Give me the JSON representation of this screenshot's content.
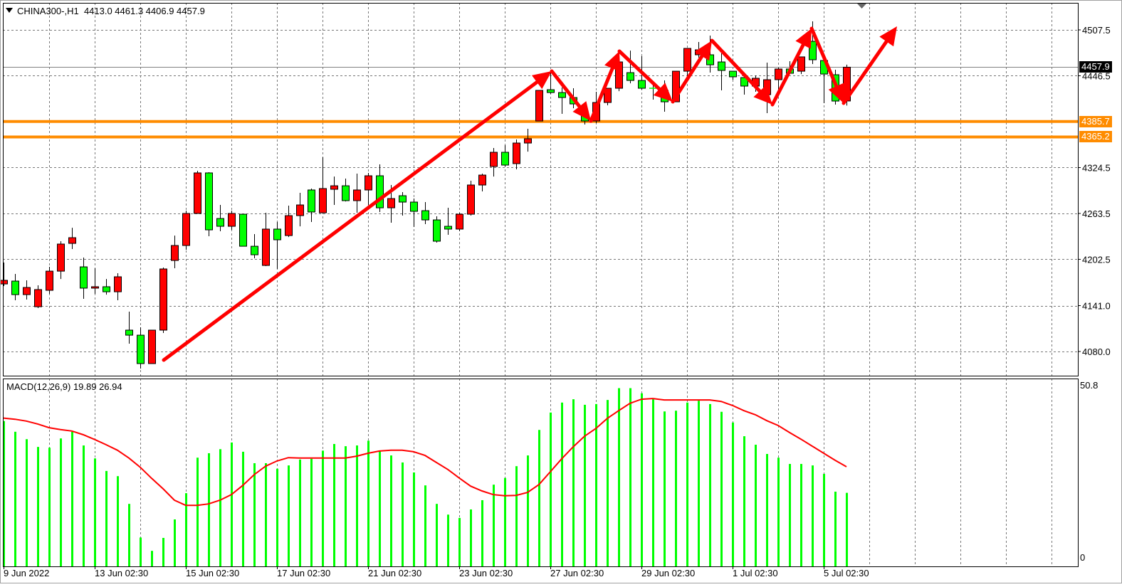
{
  "header": {
    "symbol": "CHINA300-,H1",
    "ohlc_text": "4413.0 4461.3 4406.9 4457.9"
  },
  "macd_header": {
    "label": "MACD(12,26,9)",
    "values_text": "19.89 26.94"
  },
  "colors": {
    "bull_candle": "#ff0000",
    "bear_candle": "#00ff00",
    "level_line": "#ff8c00",
    "annotation_arrow": "#ff0000",
    "macd_histogram": "#00ff00",
    "macd_signal": "#ff0000",
    "bid_tag_bg": "#000000"
  },
  "price_axis": {
    "ticks": [
      "4507.5",
      "4446.5",
      "4324.5",
      "4263.5",
      "4202.5",
      "4141.0",
      "4080.0"
    ],
    "current_price": "4457.9",
    "levels": [
      "4385.7",
      "4365.2"
    ]
  },
  "macd_axis": {
    "ticks": [
      "50.8",
      "0"
    ]
  },
  "time_axis": {
    "labels": [
      "9 Jun 2022",
      "13 Jun 02:30",
      "15 Jun 02:30",
      "17 Jun 02:30",
      "21 Jun 02:30",
      "23 Jun 02:30",
      "27 Jun 02:30",
      "29 Jun 02:30",
      "1 Jul 02:30",
      "5 Jul 02:30"
    ]
  },
  "chart_data": [
    {
      "type": "candlestick",
      "title": "CHINA300-,H1",
      "ylim": [
        4041,
        4551
      ],
      "grid": true,
      "ohlc": [
        [
          4169.8,
          4198.2,
          4167.0,
          4174.6
        ],
        [
          4173.6,
          4183.1,
          4148.1,
          4155.6
        ],
        [
          4155.6,
          4174.6,
          4149.0,
          4165.1
        ],
        [
          4139.5,
          4167.9,
          4137.7,
          4162.3
        ],
        [
          4161.3,
          4192.5,
          4156.6,
          4186.8
        ],
        [
          4186.8,
          4226.6,
          4176.4,
          4222.8
        ],
        [
          4223.7,
          4244.5,
          4216.2,
          4231.3
        ],
        [
          4192.5,
          4204.8,
          4150.0,
          4164.2
        ],
        [
          4164.2,
          4190.6,
          4156.6,
          4166.1
        ],
        [
          4166.1,
          4176.4,
          4155.6,
          4159.4
        ],
        [
          4159.4,
          4184.0,
          4148.1,
          4179.3
        ],
        [
          4108.4,
          4133.0,
          4090.4,
          4101.7
        ],
        [
          4101.7,
          4112.1,
          4057.3,
          4063.9
        ],
        [
          4063.9,
          4108.4,
          4063.9,
          4108.4
        ],
        [
          4108.4,
          4191.6,
          4104.6,
          4189.7
        ],
        [
          4201.0,
          4234.1,
          4190.6,
          4220.9
        ],
        [
          4220.9,
          4267.2,
          4215.2,
          4263.5
        ],
        [
          4263.5,
          4320.2,
          4263.5,
          4317.4
        ],
        [
          4317.4,
          4318.3,
          4233.2,
          4241.7
        ],
        [
          4256.8,
          4274.8,
          4239.8,
          4246.4
        ],
        [
          4246.4,
          4267.2,
          4241.7,
          4263.5
        ],
        [
          4262.5,
          4262.5,
          4219.9,
          4219.9
        ],
        [
          4219.9,
          4236.0,
          4203.9,
          4208.6
        ],
        [
          4194.4,
          4264.4,
          4193.5,
          4242.7
        ],
        [
          4242.7,
          4252.1,
          4189.7,
          4228.5
        ],
        [
          4234.1,
          4273.9,
          4232.2,
          4260.6
        ],
        [
          4260.6,
          4290.9,
          4246.4,
          4274.8
        ],
        [
          4294.7,
          4296.6,
          4252.1,
          4265.4
        ],
        [
          4264.4,
          4338.2,
          4264.4,
          4296.6
        ],
        [
          4295.6,
          4312.6,
          4274.8,
          4300.3
        ],
        [
          4300.3,
          4309.8,
          4279.5,
          4280.5
        ],
        [
          4280.5,
          4316.4,
          4264.4,
          4294.7
        ],
        [
          4294.7,
          4317.4,
          4274.8,
          4313.6
        ],
        [
          4313.6,
          4328.7,
          4265.4,
          4271.0
        ],
        [
          4271.0,
          4301.3,
          4251.2,
          4283.3
        ],
        [
          4287.1,
          4291.8,
          4260.6,
          4278.6
        ],
        [
          4278.6,
          4283.3,
          4245.5,
          4266.3
        ],
        [
          4267.2,
          4278.6,
          4249.3,
          4254.9
        ],
        [
          4254.9,
          4259.7,
          4224.7,
          4226.6
        ],
        [
          4246.4,
          4271.0,
          4235.1,
          4242.7
        ],
        [
          4242.7,
          4264.4,
          4239.8,
          4262.5
        ],
        [
          4262.5,
          4307.0,
          4260.6,
          4301.3
        ],
        [
          4301.3,
          4316.4,
          4292.8,
          4314.5
        ],
        [
          4325.9,
          4350.5,
          4312.6,
          4344.8
        ],
        [
          4344.8,
          4354.3,
          4325.9,
          4327.8
        ],
        [
          4329.7,
          4361.8,
          4322.1,
          4357.1
        ],
        [
          4357.1,
          4376.0,
          4345.7,
          4362.8
        ],
        [
          4386.4,
          4427.1,
          4386.4,
          4427.1
        ],
        [
          4428.0,
          4452.6,
          4422.4,
          4424.2
        ],
        [
          4424.2,
          4430.9,
          4395.9,
          4417.6
        ],
        [
          4417.6,
          4429.9,
          4403.4,
          4409.1
        ],
        [
          4395.9,
          4403.4,
          4381.7,
          4386.4
        ],
        [
          4386.4,
          4425.2,
          4383.6,
          4411.0
        ],
        [
          4411.0,
          4429.9,
          4407.2,
          4429.9
        ],
        [
          4429.9,
          4479.1,
          4426.1,
          4464.9
        ],
        [
          4450.7,
          4480.0,
          4436.5,
          4440.3
        ],
        [
          4440.3,
          4472.5,
          4428.0,
          4429.9
        ],
        [
          4429.9,
          4437.5,
          4414.8,
          4429.9
        ],
        [
          4427.1,
          4440.3,
          4398.7,
          4411.9
        ],
        [
          4411.9,
          4452.6,
          4411.9,
          4452.6
        ],
        [
          4452.6,
          4482.9,
          4440.3,
          4482.9
        ],
        [
          4474.4,
          4491.4,
          4470.6,
          4481.0
        ],
        [
          4474.4,
          4499.9,
          4450.7,
          4461.1
        ],
        [
          4464.9,
          4476.3,
          4427.1,
          4453.6
        ],
        [
          4452.6,
          4452.6,
          4441.3,
          4445.1
        ],
        [
          4444.1,
          4444.1,
          4421.4,
          4432.8
        ],
        [
          4432.8,
          4446.9,
          4425.2,
          4443.2
        ],
        [
          4421.4,
          4464.0,
          4396.8,
          4441.3
        ],
        [
          4441.3,
          4457.4,
          4425.2,
          4455.5
        ],
        [
          4455.5,
          4465.9,
          4449.8,
          4449.8
        ],
        [
          4452.6,
          4471.6,
          4448.8,
          4471.6
        ],
        [
          4492.3,
          4518.8,
          4462.1,
          4467.8
        ],
        [
          4466.8,
          4466.8,
          4410.1,
          4448.8
        ],
        [
          4447.9,
          4454.5,
          4408.2,
          4412.9
        ],
        [
          4413.0,
          4461.3,
          4406.9,
          4457.9
        ]
      ],
      "horizontal_levels": [
        4385.7,
        4365.2
      ],
      "current_price": 4457.9
    },
    {
      "type": "bar",
      "title": "MACD(12,26,9)",
      "ylim": [
        0,
        50.8
      ],
      "series": [
        {
          "name": "MACD",
          "kind": "histogram",
          "values": [
            39.3,
            36.4,
            34.4,
            32.3,
            32.1,
            34.6,
            36.4,
            32.7,
            29.2,
            25.8,
            24.4,
            16.9,
            7.8,
            4.2,
            7.7,
            12.7,
            19.8,
            29.4,
            30.6,
            31.7,
            33.5,
            31.0,
            27.9,
            27.9,
            26.4,
            27.3,
            28.9,
            29.1,
            31.3,
            33.1,
            32.5,
            32.7,
            34.0,
            31.2,
            30.0,
            28.1,
            25.4,
            21.9,
            16.9,
            14.0,
            13.1,
            15.4,
            17.9,
            22.1,
            23.9,
            27.1,
            30.0,
            36.9,
            41.6,
            44.3,
            45.2,
            43.7,
            43.9,
            45.0,
            48.2,
            48.2,
            46.8,
            45.2,
            41.9,
            42.1,
            44.3,
            44.8,
            43.9,
            41.8,
            38.9,
            35.2,
            32.9,
            30.4,
            29.4,
            27.7,
            27.7,
            27.3,
            25.0,
            20.2,
            19.89
          ]
        },
        {
          "name": "Signal",
          "kind": "line",
          "values": [
            40.1,
            39.8,
            39.3,
            38.5,
            37.5,
            37.0,
            36.6,
            35.6,
            34.3,
            32.9,
            31.4,
            29.3,
            26.8,
            23.8,
            21.0,
            17.9,
            16.5,
            16.5,
            16.9,
            17.9,
            19.4,
            21.9,
            24.8,
            27.1,
            28.5,
            29.4,
            29.3,
            29.3,
            29.3,
            29.3,
            29.3,
            29.8,
            30.6,
            31.2,
            31.4,
            31.4,
            31.0,
            30.0,
            28.1,
            26.2,
            23.9,
            21.7,
            20.4,
            19.4,
            19.1,
            19.2,
            20.0,
            22.1,
            25.6,
            29.1,
            32.3,
            35.2,
            37.3,
            40.0,
            42.1,
            44.1,
            45.2,
            45.4,
            45.0,
            45.0,
            45.0,
            45.0,
            45.0,
            44.6,
            43.5,
            42.1,
            41.0,
            39.4,
            38.1,
            36.2,
            34.4,
            32.5,
            30.6,
            28.7,
            26.94
          ]
        }
      ]
    }
  ]
}
